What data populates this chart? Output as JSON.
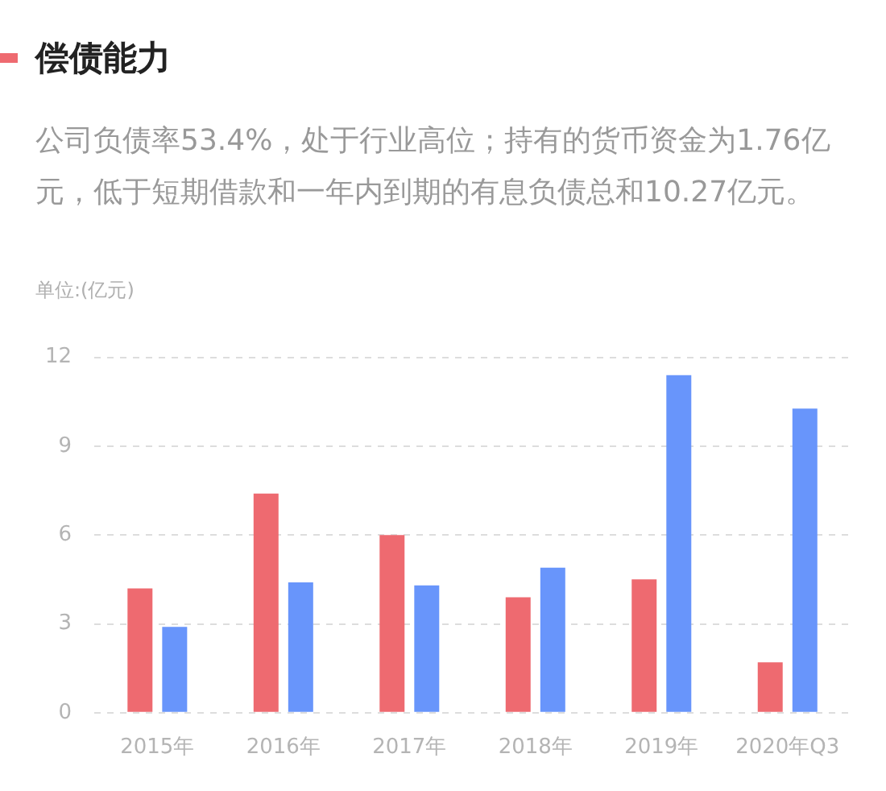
{
  "chart_data": {
    "type": "bar",
    "title": "偿债能力",
    "subtitle": "公司负债率53.4%，处于行业高位；持有的货币资金为1.76亿元，低于短期借款和一年内到期的有息负债总和10.27亿元。",
    "annotations": [
      "单位:(亿元)"
    ],
    "categories": [
      "2015年",
      "2016年",
      "2017年",
      "2018年",
      "2019年",
      "2020年Q3"
    ],
    "series": [
      {
        "color": "#ee6a70",
        "values": [
          4.2,
          7.4,
          6.0,
          3.9,
          4.5,
          1.7
        ]
      },
      {
        "color": "#6895fb",
        "values": [
          2.9,
          4.4,
          4.3,
          4.9,
          11.4,
          10.27
        ]
      }
    ],
    "ylim": [
      0,
      12
    ],
    "yticks": [
      0,
      3,
      6,
      9,
      12
    ],
    "grid": "y",
    "legend": false
  }
}
